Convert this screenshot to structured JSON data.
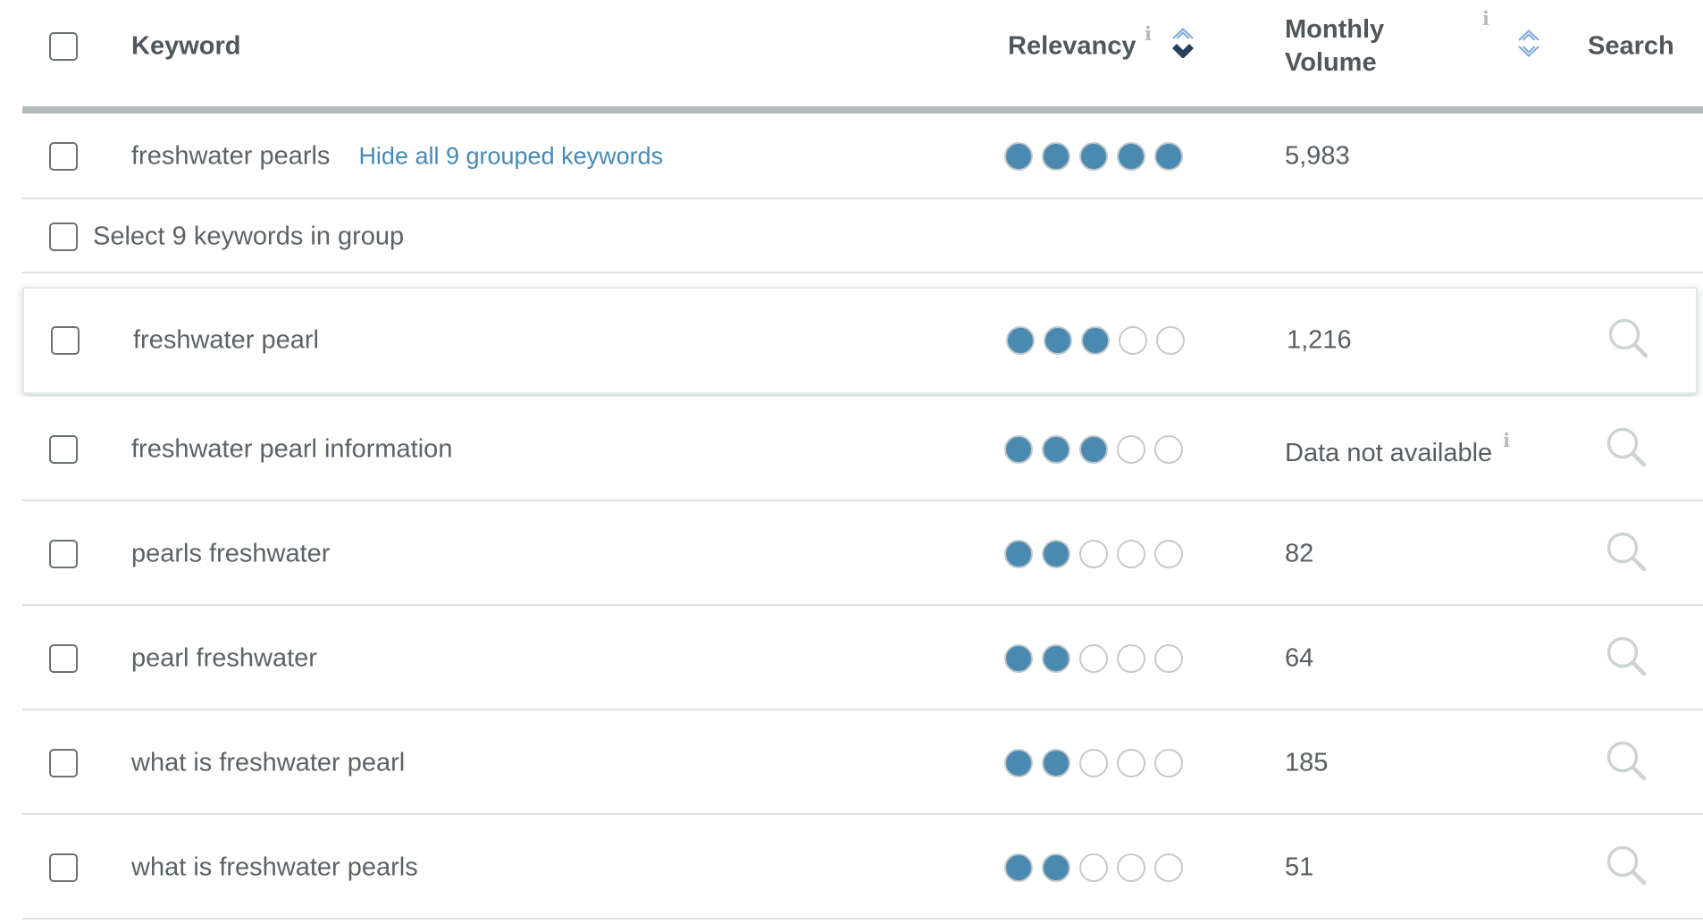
{
  "colors": {
    "dot_filled": "#4a8ab1",
    "dot_empty_border": "#c5cacc",
    "link_blue": "#4589b4",
    "sort_active_navy": "#27415a",
    "sort_inactive_blue": "#7fa8d9",
    "separator": "#dde2e3",
    "header_divider": "#b3babc"
  },
  "icons": {
    "info": "i"
  },
  "header": {
    "keyword": "Keyword",
    "relevancy": "Relevancy",
    "monthly_volume": "Monthly Volume",
    "search": "Search",
    "relevancy_sort_state": "descending",
    "volume_sort_state": "unsorted"
  },
  "parent_row": {
    "keyword": "freshwater pearls",
    "toggle_link": "Hide all 9 grouped keywords",
    "relevancy": 5,
    "relevancy_max": 5,
    "monthly_volume": "5,983"
  },
  "group_select_row": {
    "label": "Select 9 keywords in group"
  },
  "grouped_rows": [
    {
      "keyword": "freshwater pearl",
      "relevancy": 3,
      "monthly_volume": "1,216",
      "in_group": true
    },
    {
      "keyword": "freshwater pearl information",
      "relevancy": 3,
      "monthly_volume": "Data not available",
      "volume_info": true
    },
    {
      "keyword": "pearls freshwater",
      "relevancy": 2,
      "monthly_volume": "82"
    },
    {
      "keyword": "pearl freshwater",
      "relevancy": 2,
      "monthly_volume": "64"
    },
    {
      "keyword": "what is freshwater pearl",
      "relevancy": 2,
      "monthly_volume": "185"
    },
    {
      "keyword": "what is freshwater pearls",
      "relevancy": 2,
      "monthly_volume": "51"
    }
  ]
}
